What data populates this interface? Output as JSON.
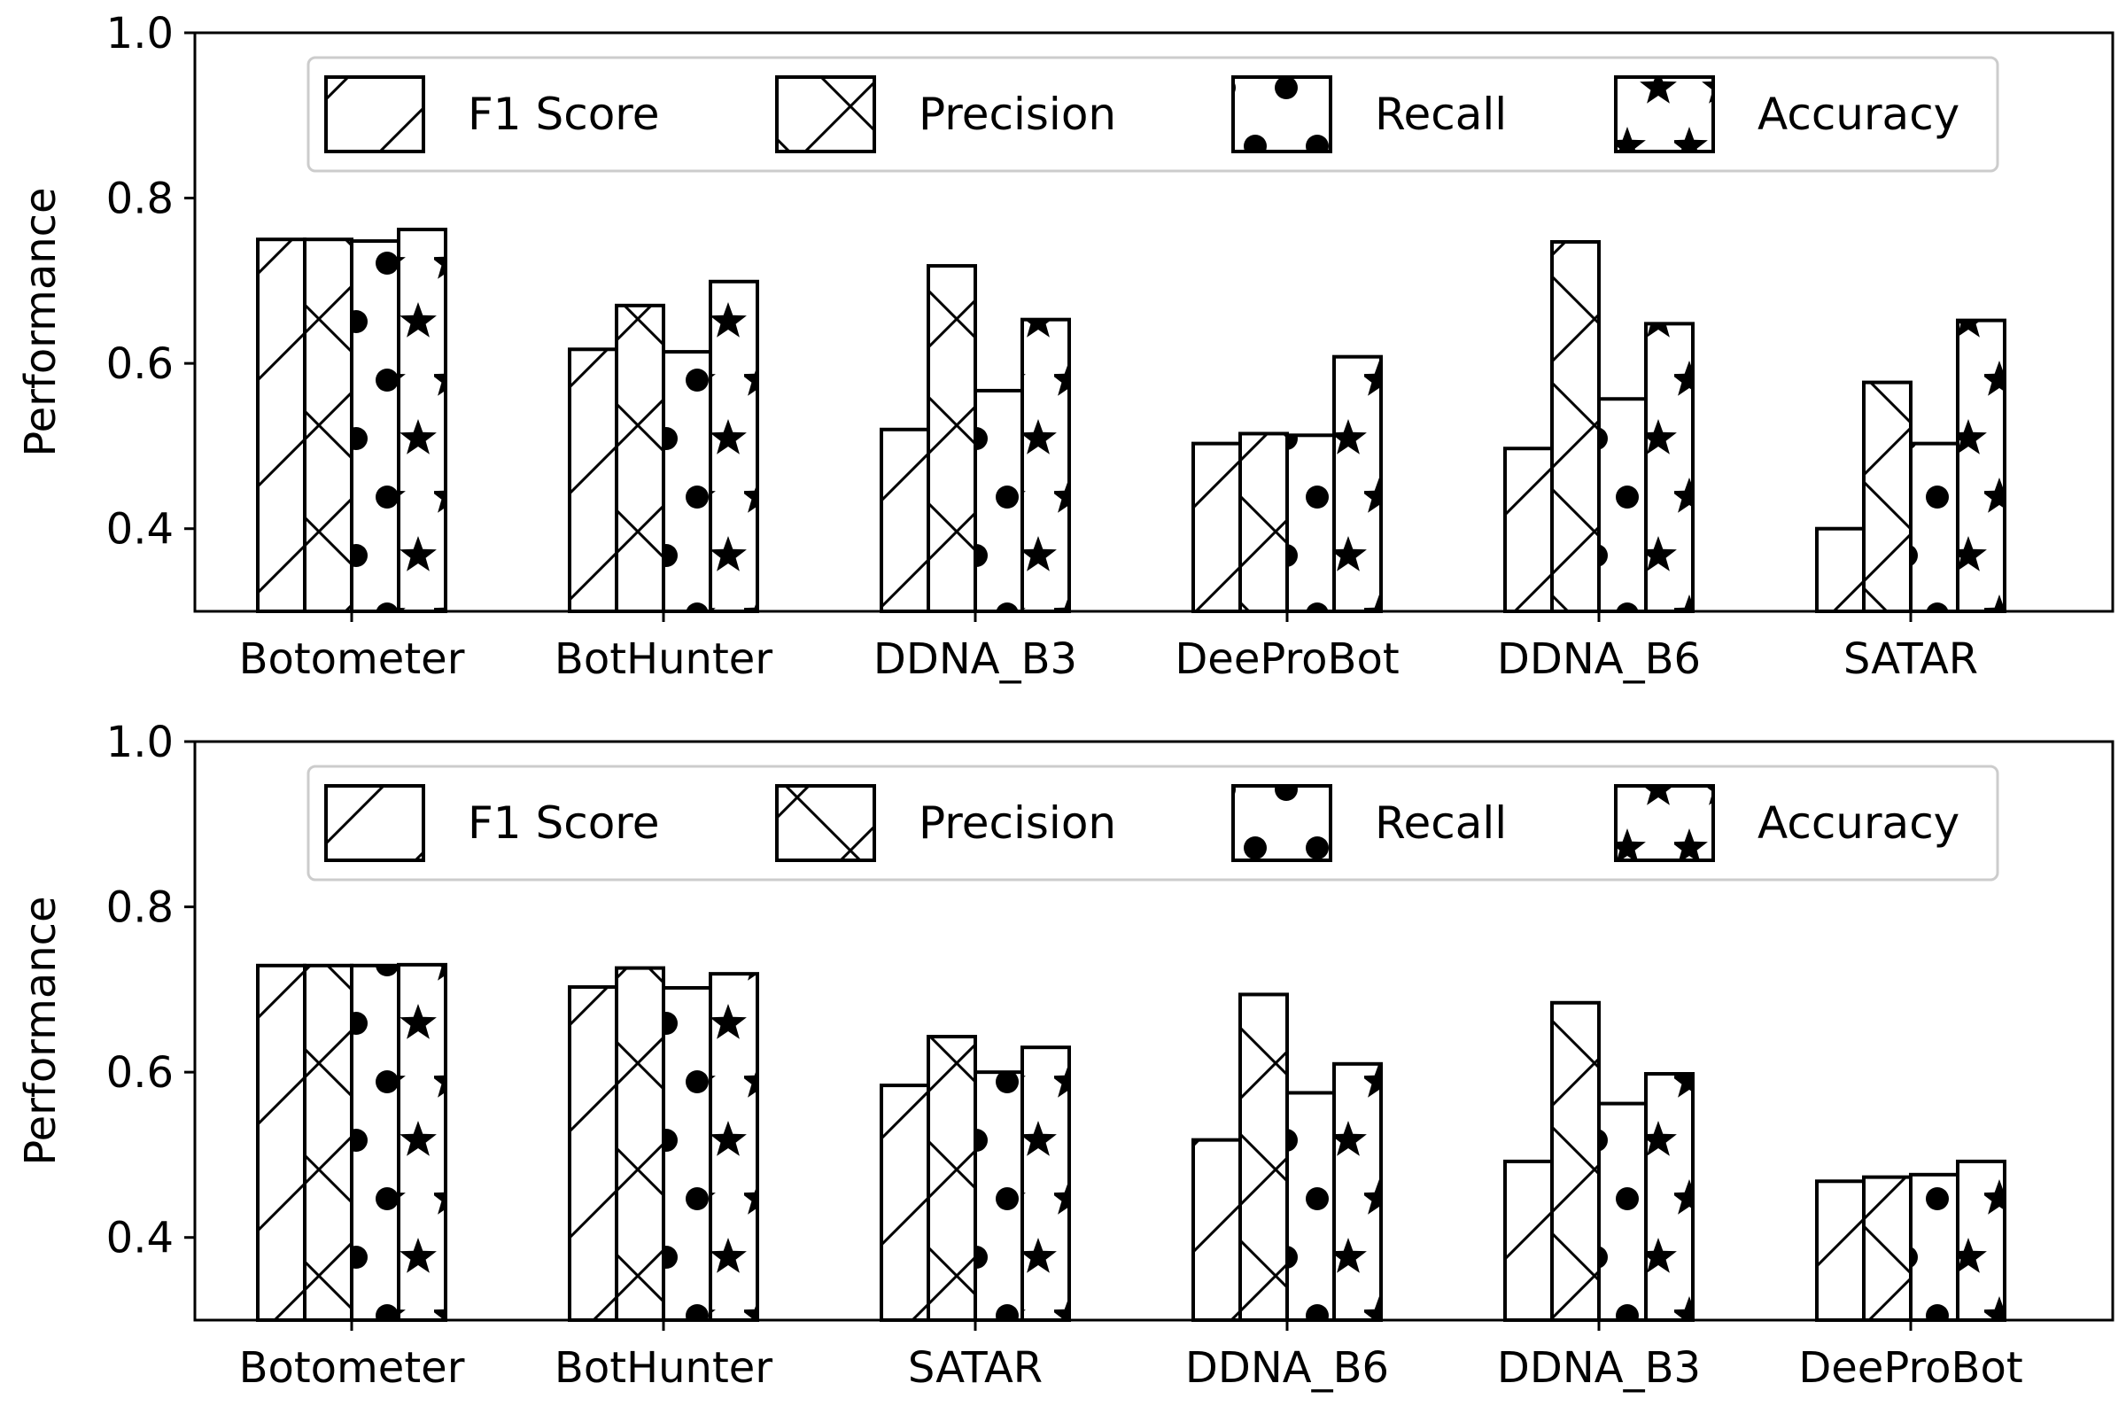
{
  "chart_data": [
    {
      "type": "bar",
      "categories": [
        "Botometer",
        "BotHunter",
        "DDNA_B3",
        "DeeProBot",
        "DDNA_B6",
        "SATAR"
      ],
      "series": [
        {
          "name": "F1 Score",
          "values": [
            0.75,
            0.617,
            0.52,
            0.503,
            0.497,
            0.4
          ]
        },
        {
          "name": "Precision",
          "values": [
            0.75,
            0.67,
            0.718,
            0.515,
            0.747,
            0.577
          ]
        },
        {
          "name": "Recall",
          "values": [
            0.748,
            0.614,
            0.567,
            0.513,
            0.557,
            0.503
          ]
        },
        {
          "name": "Accuracy",
          "values": [
            0.762,
            0.699,
            0.653,
            0.608,
            0.648,
            0.652
          ]
        }
      ],
      "xlabel": "",
      "ylabel": "Performance",
      "ylim": [
        0.3,
        1.0
      ],
      "yticks": [
        "0.4",
        "0.6",
        "0.8",
        "1.0"
      ],
      "legend_position": "top-center",
      "grid": false
    },
    {
      "type": "bar",
      "categories": [
        "Botometer",
        "BotHunter",
        "SATAR",
        "DDNA_B6",
        "DDNA_B3",
        "DeeProBot"
      ],
      "series": [
        {
          "name": "F1 Score",
          "values": [
            0.729,
            0.703,
            0.584,
            0.518,
            0.492,
            0.468
          ]
        },
        {
          "name": "Precision",
          "values": [
            0.729,
            0.726,
            0.643,
            0.694,
            0.684,
            0.473
          ]
        },
        {
          "name": "Recall",
          "values": [
            0.729,
            0.702,
            0.6,
            0.575,
            0.562,
            0.476
          ]
        },
        {
          "name": "Accuracy",
          "values": [
            0.73,
            0.719,
            0.63,
            0.61,
            0.598,
            0.492
          ]
        }
      ],
      "xlabel": "",
      "ylabel": "Performance",
      "ylim": [
        0.3,
        1.0
      ],
      "yticks": [
        "0.4",
        "0.6",
        "0.8",
        "1.0"
      ],
      "legend_position": "top-center",
      "grid": false
    }
  ]
}
